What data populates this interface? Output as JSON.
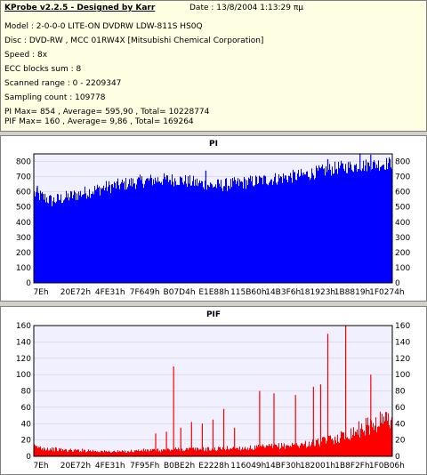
{
  "header": {
    "title": "KProbe v2.2.5 - Designed by Karr",
    "date": "Date : 13/8/2004 1:13:29 πμ"
  },
  "info_lines": [
    "Model : 2-0-0-0 LITE-ON DVDRW LDW-811S   HS0Q",
    "Disc : DVD-RW , MCC 01RW4X   [Mitsubishi Chemical Corporation]",
    "Speed : 8x",
    "ECC blocks sum : 8",
    "Scanned range : 0 - 2209347",
    "Sampling count : 109778",
    "PI Max= 854 , Average= 595,90 , Total= 10228774",
    "PIF Max= 160 , Average= 9,86 , Total= 169264"
  ],
  "chart_data": [
    {
      "type": "area",
      "title": "PI",
      "color": "#0000ff",
      "ylim": [
        0,
        850
      ],
      "yticks": [
        0,
        100,
        200,
        300,
        400,
        500,
        600,
        700,
        800
      ],
      "xticks": [
        "7Eh",
        "20E72h",
        "4FE31h",
        "7F649h",
        "B07D4h",
        "E1E88h",
        "115B60h",
        "14B3F6h",
        "181923h",
        "1B8819h",
        "1F0274h"
      ],
      "x": [
        0.0,
        0.05,
        0.1,
        0.15,
        0.2,
        0.25,
        0.3,
        0.35,
        0.4,
        0.45,
        0.5,
        0.55,
        0.6,
        0.65,
        0.7,
        0.75,
        0.8,
        0.85,
        0.9,
        0.95,
        1.0
      ],
      "y": [
        590,
        540,
        570,
        600,
        630,
        650,
        670,
        680,
        680,
        660,
        640,
        650,
        665,
        680,
        695,
        710,
        735,
        760,
        770,
        780,
        790
      ],
      "spikes": [
        {
          "x": 0.01,
          "y": 640
        },
        {
          "x": 0.48,
          "y": 740
        },
        {
          "x": 0.62,
          "y": 700
        },
        {
          "x": 0.82,
          "y": 815
        },
        {
          "x": 0.91,
          "y": 854
        },
        {
          "x": 0.94,
          "y": 845
        }
      ]
    },
    {
      "type": "area",
      "title": "PIF",
      "color": "#ff0000",
      "ylim": [
        0,
        160
      ],
      "yticks": [
        0,
        20,
        40,
        60,
        80,
        100,
        120,
        140,
        160
      ],
      "xticks": [
        "7Eh",
        "20E72h",
        "4FE31h",
        "7F95Fh",
        "B0BE2h",
        "E2228h",
        "116049h",
        "14BF30h",
        "182001h",
        "1B8F2Fh",
        "1F0B06h"
      ],
      "x": [
        0.0,
        0.05,
        0.1,
        0.15,
        0.2,
        0.25,
        0.3,
        0.35,
        0.4,
        0.45,
        0.5,
        0.55,
        0.6,
        0.65,
        0.7,
        0.75,
        0.8,
        0.85,
        0.9,
        0.95,
        1.0
      ],
      "y": [
        8,
        6,
        5,
        5,
        4,
        4,
        5,
        5,
        6,
        6,
        6,
        7,
        7,
        8,
        9,
        10,
        12,
        16,
        22,
        28,
        34
      ],
      "spikes": [
        {
          "x": 0.34,
          "y": 28
        },
        {
          "x": 0.37,
          "y": 30
        },
        {
          "x": 0.39,
          "y": 110
        },
        {
          "x": 0.41,
          "y": 35
        },
        {
          "x": 0.44,
          "y": 42
        },
        {
          "x": 0.47,
          "y": 40
        },
        {
          "x": 0.5,
          "y": 45
        },
        {
          "x": 0.53,
          "y": 58
        },
        {
          "x": 0.56,
          "y": 35
        },
        {
          "x": 0.63,
          "y": 80
        },
        {
          "x": 0.67,
          "y": 77
        },
        {
          "x": 0.73,
          "y": 75
        },
        {
          "x": 0.78,
          "y": 85
        },
        {
          "x": 0.8,
          "y": 88
        },
        {
          "x": 0.82,
          "y": 150
        },
        {
          "x": 0.87,
          "y": 160
        },
        {
          "x": 0.94,
          "y": 100
        }
      ]
    }
  ]
}
